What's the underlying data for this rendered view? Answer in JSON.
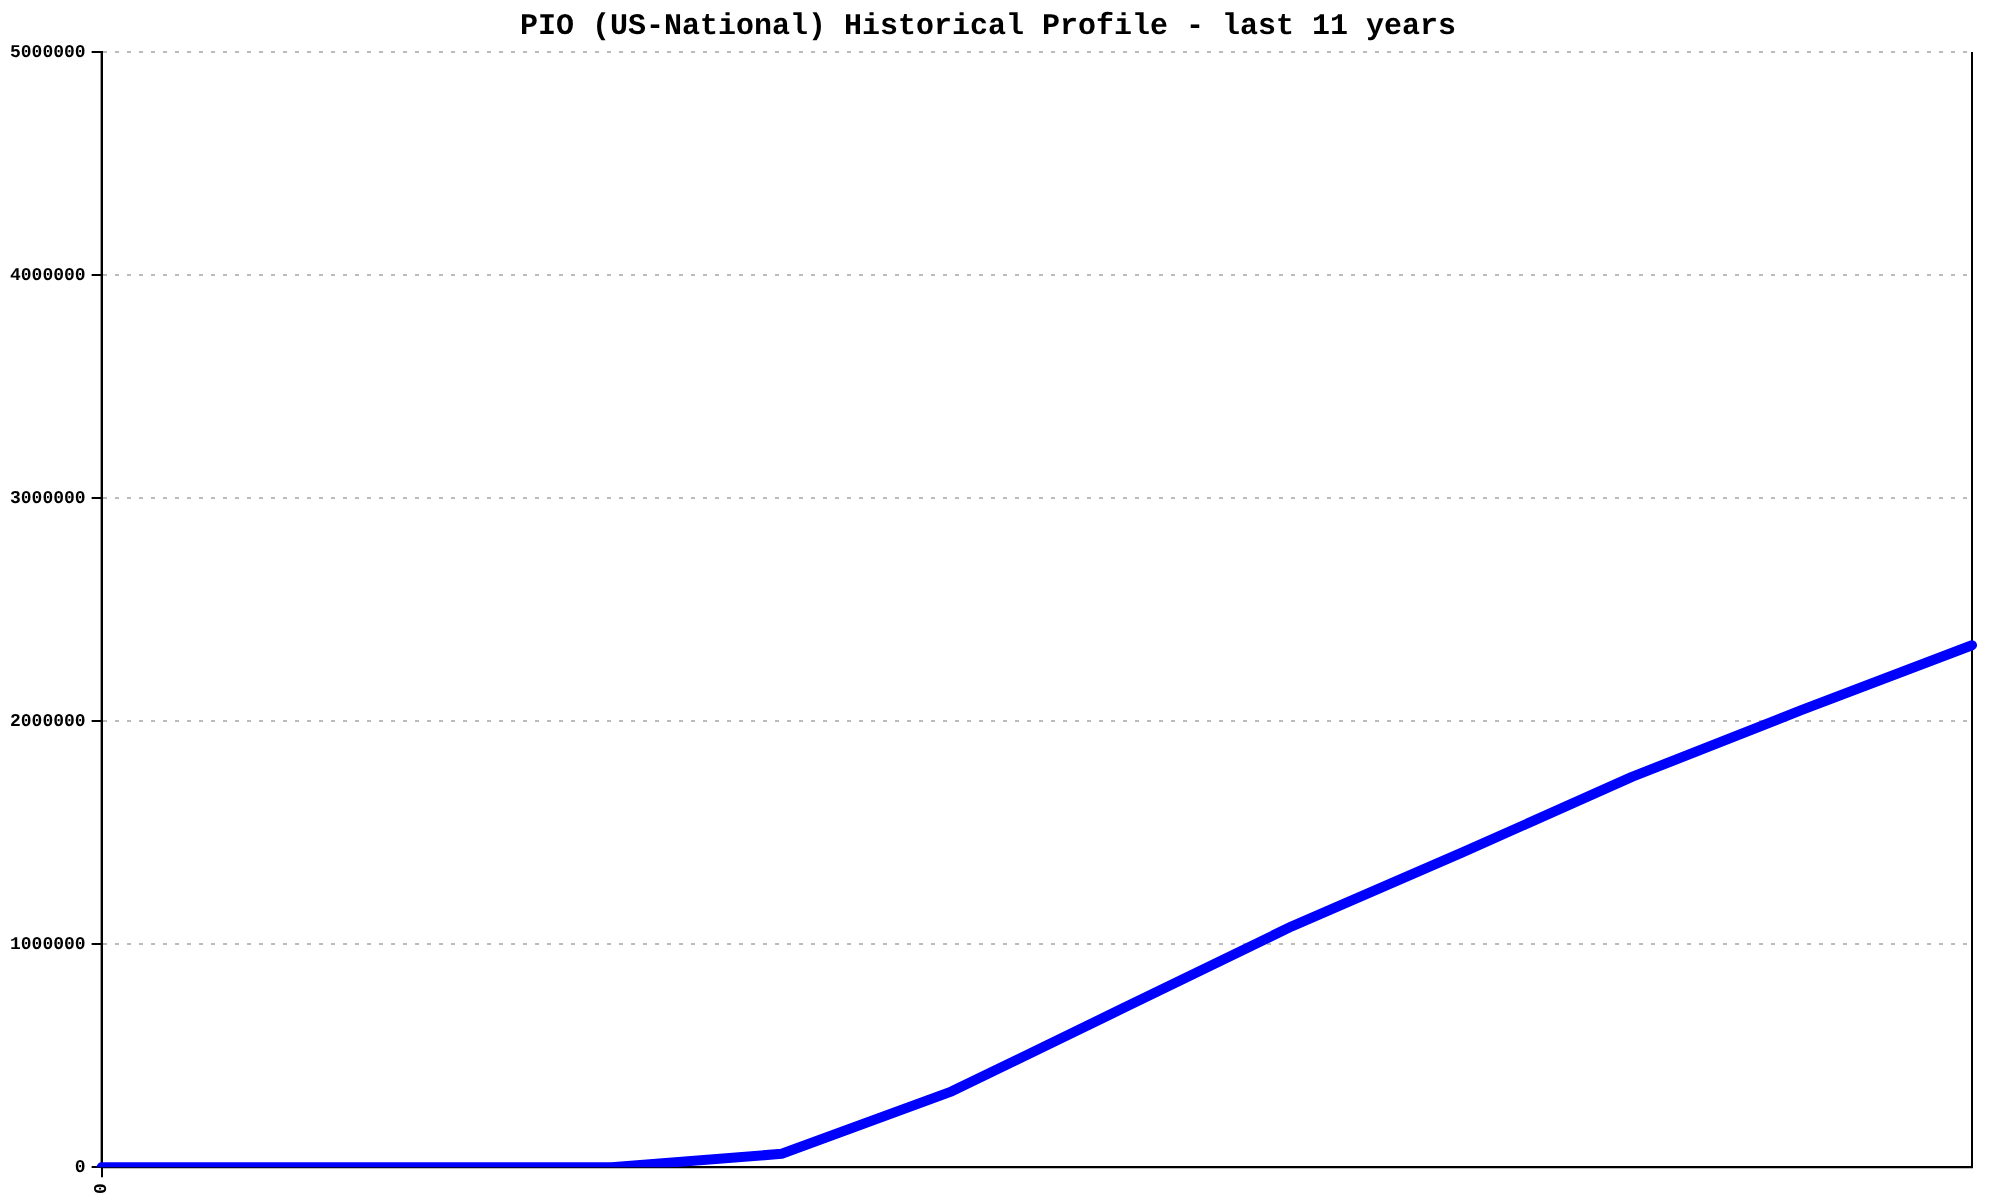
{
  "chart_data": {
    "type": "line",
    "title": "PIO (US-National) Historical Profile - last 11 years",
    "categories": [
      "0",
      null,
      null,
      null,
      null,
      null,
      null,
      null,
      null,
      null,
      null,
      null
    ],
    "series": [
      {
        "color": "#0000ff",
        "values": [
          0,
          0,
          0,
          0,
          60000,
          340000,
          710000,
          1080000,
          1410000,
          1750000,
          2050000,
          2340000
        ]
      }
    ],
    "ylim": [
      0,
      5000000
    ],
    "yticks": [
      0,
      1000000,
      2000000,
      3000000,
      4000000,
      5000000
    ],
    "grid": "y",
    "legend": false,
    "marker": "none",
    "line_style": "solid"
  }
}
